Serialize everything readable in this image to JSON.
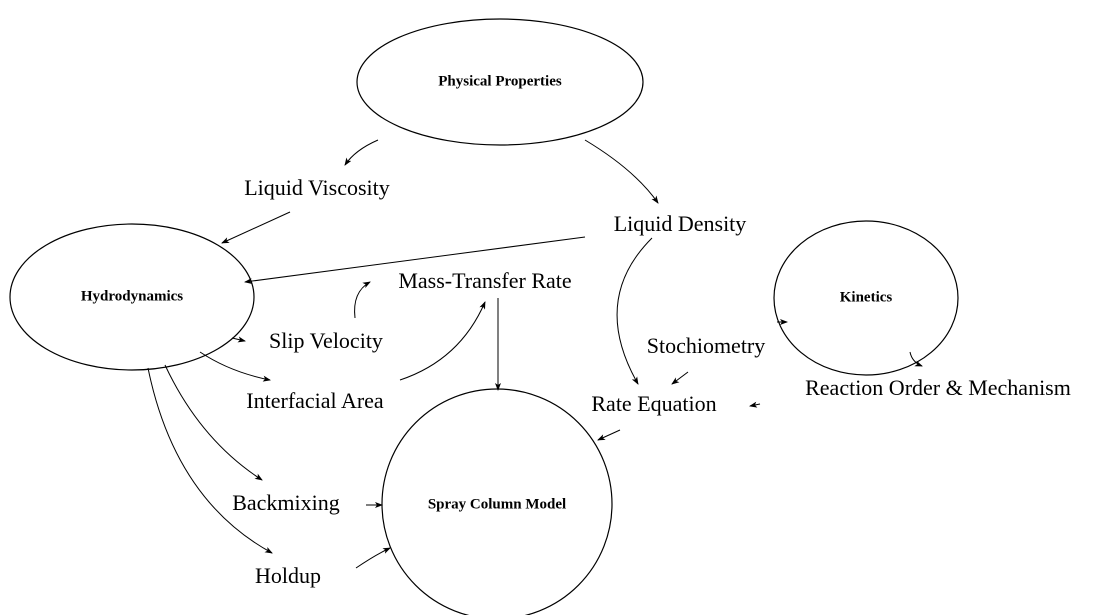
{
  "nodes": [
    {
      "label": "Physical Properties"
    },
    {
      "label": "Liquid Viscosity"
    },
    {
      "label": "Liquid Density"
    },
    {
      "label": "Hydrodynamics"
    },
    {
      "label": "Mass-Transfer Rate"
    },
    {
      "label": "Kinetics"
    },
    {
      "label": "Slip Velocity"
    },
    {
      "label": "Stochiometry"
    },
    {
      "label": "Interfacial Area"
    },
    {
      "label": "Rate Equation"
    },
    {
      "label": "Reaction Order & Mechanism"
    },
    {
      "label": "Backmixing"
    },
    {
      "label": "Spray Column Model"
    },
    {
      "label": "Holdup"
    }
  ]
}
